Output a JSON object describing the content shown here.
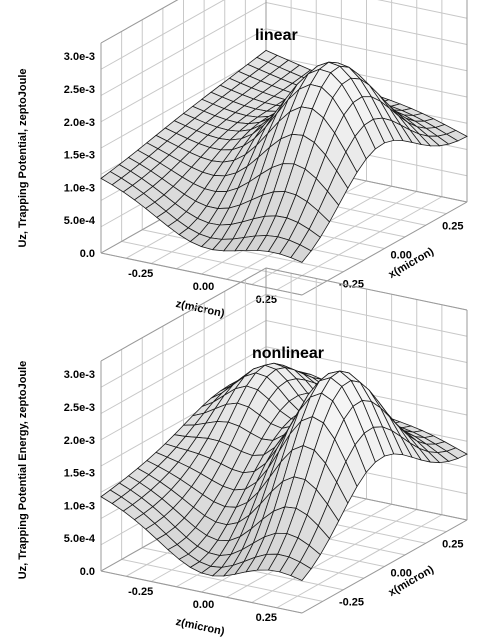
{
  "chart_data": [
    {
      "type": "surface",
      "title": "linear",
      "xlabel": "x(micron)",
      "zlabel": "z(micron)",
      "ylabel": "Uz, Trapping Potential, zeptoJoule",
      "x_ticks": [
        "-0.25",
        "0.00",
        "0.25"
      ],
      "z_ticks": [
        "-0.25",
        "0.00",
        "0.25"
      ],
      "y_ticks": [
        "0.0",
        "5.0e-4",
        "1.0e-3",
        "1.5e-3",
        "2.0e-3",
        "2.5e-3",
        "3.0e-3"
      ],
      "x_range": [
        -0.4,
        0.4
      ],
      "z_range": [
        -0.4,
        0.4
      ],
      "y_range": [
        0,
        0.0032
      ],
      "grid": true,
      "surface_samples": {
        "x": [
          -0.4,
          0,
          0.4
        ],
        "z": [
          -0.4,
          0,
          0.4
        ],
        "note_values_Uz": [
          [
            0.0011,
            0.0015,
            0.0012
          ],
          [
            0.0008,
            0.0015,
            0.0029
          ],
          [
            0.0003,
            0.0008,
            0.0015
          ]
        ]
      }
    },
    {
      "type": "surface",
      "title": "nonlinear",
      "xlabel": "x(micron)",
      "zlabel": "z(micron)",
      "ylabel": "Uz, Trapping Potential Energy, zeptoJoule",
      "x_ticks": [
        "-0.25",
        "0.00",
        "0.25"
      ],
      "z_ticks": [
        "-0.25",
        "0.00",
        "0.25"
      ],
      "y_ticks": [
        "0.0",
        "5.0e-4",
        "1.0e-3",
        "1.5e-3",
        "2.0e-3",
        "2.5e-3",
        "3.0e-3"
      ],
      "x_range": [
        -0.4,
        0.4
      ],
      "z_range": [
        -0.4,
        0.4
      ],
      "y_range": [
        0,
        0.0032
      ],
      "grid": true,
      "surface_samples": {
        "x": [
          -0.4,
          0,
          0.4
        ],
        "z": [
          -0.4,
          0,
          0.4
        ],
        "note_values_Uz": [
          [
            0.0013,
            0.0024,
            0.0013
          ],
          [
            0.0006,
            0.0016,
            0.0031
          ],
          [
            0.0002,
            0.0006,
            0.0015
          ]
        ]
      }
    }
  ]
}
